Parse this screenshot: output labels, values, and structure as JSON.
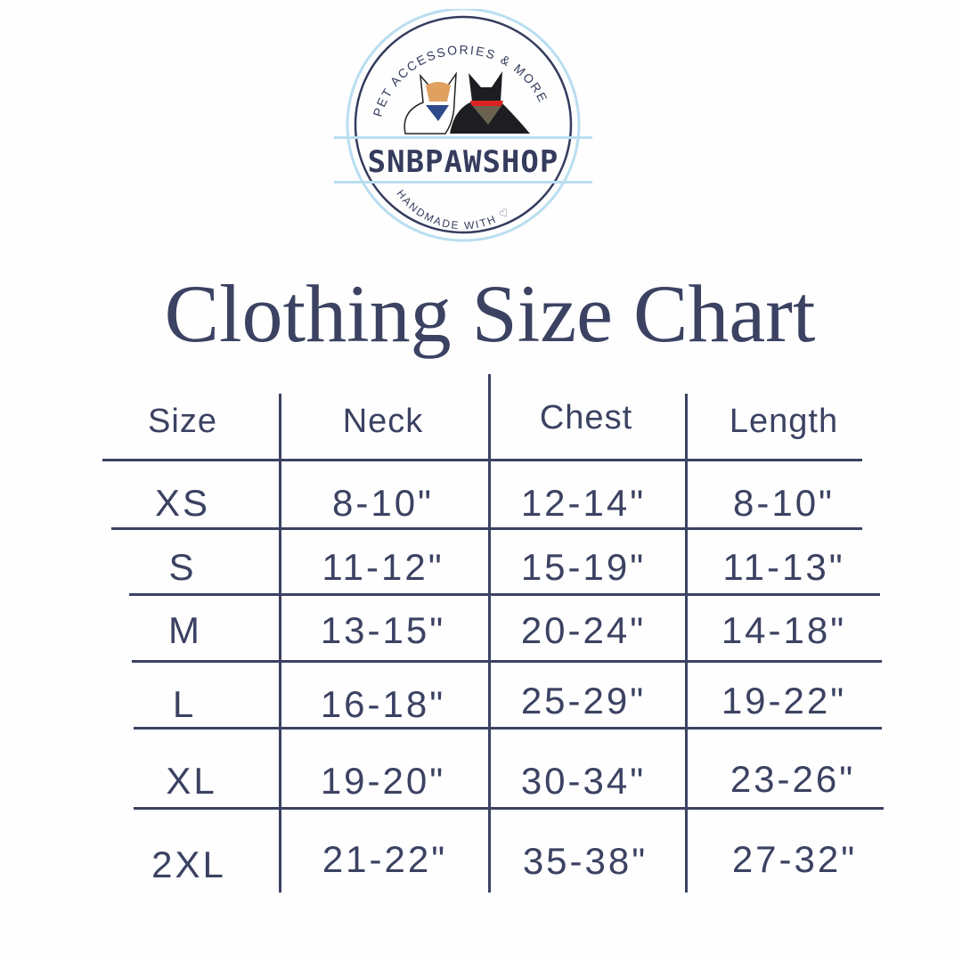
{
  "logo": {
    "brand": "SNBPAWSHOP",
    "top_arc": "PET ACCESSORIES & MORE",
    "bottom_arc": "HANDMADE WITH ♡",
    "colors": {
      "navy": "#353c5e",
      "light_blue": "#b9def0"
    }
  },
  "title": "Clothing Size Chart",
  "table": {
    "headers": [
      "Size",
      "Neck",
      "Chest",
      "Length"
    ],
    "rows": [
      [
        "XS",
        "8-10\"",
        "12-14\"",
        "8-10\""
      ],
      [
        "S",
        "11-12\"",
        "15-19\"",
        "11-13\""
      ],
      [
        "M",
        "13-15\"",
        "20-24\"",
        "14-18\""
      ],
      [
        "L",
        "16-18\"",
        "25-29\"",
        "19-22\""
      ],
      [
        "XL",
        "19-20\"",
        "30-34\"",
        "23-26\""
      ],
      [
        "2XL",
        "21-22\"",
        "35-38\"",
        "27-32\""
      ]
    ]
  },
  "colors": {
    "text": "#3b4262",
    "background": "#fefefe"
  }
}
